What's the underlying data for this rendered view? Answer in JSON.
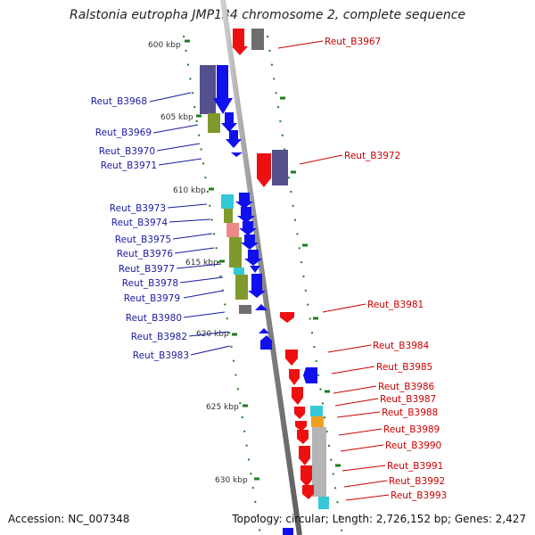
{
  "title": "Ralstonia eutropha JMP134 chromosome 2, complete sequence",
  "accession_text": "Accession: NC_007348",
  "summary_text": "Topology: circular; Length: 2,726,152 bp; Genes: 2,427",
  "scale_labels": [
    "600 kbp",
    "605 kbp",
    "610 kbp",
    "615 kbp",
    "620 kbp",
    "625 kbp",
    "630 kbp"
  ],
  "left_genes": [
    "Reut_B3968",
    "Reut_B3969",
    "Reut_B3970",
    "Reut_B3971",
    "Reut_B3973",
    "Reut_B3974",
    "Reut_B3975",
    "Reut_B3976",
    "Reut_B3977",
    "Reut_B3978",
    "Reut_B3979",
    "Reut_B3980",
    "Reut_B3982",
    "Reut_B3983"
  ],
  "right_genes": [
    "Reut_B3967",
    "Reut_B3972",
    "Reut_B3981",
    "Reut_B3984",
    "Reut_B3985",
    "Reut_B3986",
    "Reut_B3987",
    "Reut_B3988",
    "Reut_B3989",
    "Reut_B3990",
    "Reut_B3991",
    "Reut_B3992",
    "Reut_B3993"
  ],
  "colors": {
    "backbone": "#8c8c8c",
    "forward_gene": "#1010ee",
    "reverse_gene": "#ee1010",
    "forward_label": "#1a1aa0",
    "reverse_label": "#cc0000",
    "ticks": "#1e7e1e",
    "cog_purple": "#54508c",
    "cog_olive": "#7e9a2c",
    "cog_cyan": "#34c8d8",
    "cog_pink": "#ee8888",
    "cog_orange": "#f0a020",
    "cog_gray": "#6e6e6e",
    "cog_lightgray": "#b4b4b4"
  }
}
